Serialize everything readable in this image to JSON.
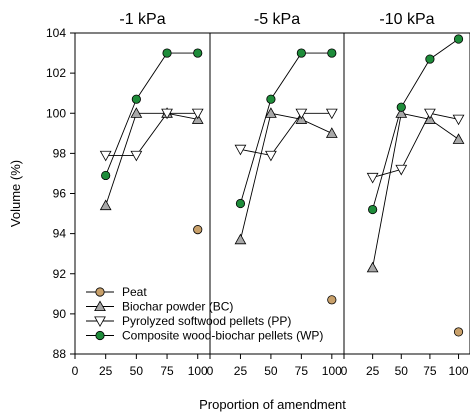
{
  "chart_data": {
    "type": "line",
    "xlabel": "Proportion of amendment",
    "ylabel": "Volume (%)",
    "ylim": [
      88,
      104
    ],
    "yticks": [
      88,
      90,
      92,
      94,
      96,
      98,
      100,
      102,
      104
    ],
    "xticks": [
      0,
      25,
      50,
      75,
      100
    ],
    "xlim": [
      0,
      110
    ],
    "legend_position": "bottom-left",
    "colors": {
      "peat": "#c8a06a",
      "bc": "#a8a8a8",
      "pp": "#ffffff",
      "wp": "#1e8c3a"
    },
    "legend": [
      {
        "key": "peat",
        "label": "Peat",
        "marker": "circle"
      },
      {
        "key": "bc",
        "label": "Biochar powder (BC)",
        "marker": "triangle-up"
      },
      {
        "key": "pp",
        "label": "Pyrolyzed softwood pellets (PP)",
        "marker": "triangle-down"
      },
      {
        "key": "wp",
        "label": "Composite wood-biochar pellets (WP)",
        "marker": "circle"
      }
    ],
    "panels": [
      {
        "title": "-1 kPa",
        "series": [
          {
            "key": "peat",
            "x": [
              100
            ],
            "y": [
              94.2
            ]
          },
          {
            "key": "bc",
            "x": [
              25,
              50,
              75,
              100
            ],
            "y": [
              95.4,
              100.0,
              100.0,
              99.7
            ]
          },
          {
            "key": "pp",
            "x": [
              25,
              50,
              75,
              100
            ],
            "y": [
              97.9,
              97.9,
              100.0,
              100.0
            ]
          },
          {
            "key": "wp",
            "x": [
              25,
              50,
              75,
              100
            ],
            "y": [
              96.9,
              100.7,
              103.0,
              103.0
            ]
          }
        ]
      },
      {
        "title": "-5 kPa",
        "series": [
          {
            "key": "peat",
            "x": [
              100
            ],
            "y": [
              90.7
            ]
          },
          {
            "key": "bc",
            "x": [
              25,
              50,
              75,
              100
            ],
            "y": [
              93.7,
              100.0,
              99.7,
              99.0
            ]
          },
          {
            "key": "pp",
            "x": [
              25,
              50,
              75,
              100
            ],
            "y": [
              98.2,
              97.9,
              100.0,
              100.0
            ]
          },
          {
            "key": "wp",
            "x": [
              25,
              50,
              75,
              100
            ],
            "y": [
              95.5,
              100.7,
              103.0,
              103.0
            ]
          }
        ]
      },
      {
        "title": "-10 kPa",
        "series": [
          {
            "key": "peat",
            "x": [
              100
            ],
            "y": [
              89.1
            ]
          },
          {
            "key": "bc",
            "x": [
              25,
              50,
              75,
              100
            ],
            "y": [
              92.3,
              100.0,
              99.7,
              98.7
            ]
          },
          {
            "key": "pp",
            "x": [
              25,
              50,
              75,
              100
            ],
            "y": [
              96.8,
              97.2,
              100.0,
              99.7
            ]
          },
          {
            "key": "wp",
            "x": [
              25,
              50,
              75,
              100
            ],
            "y": [
              95.2,
              100.3,
              102.7,
              103.7
            ]
          }
        ]
      }
    ]
  }
}
